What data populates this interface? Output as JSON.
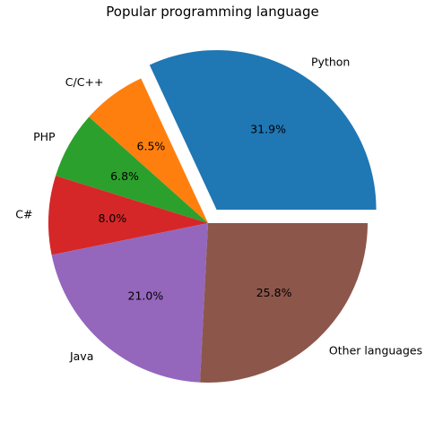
{
  "chart_data": {
    "type": "pie",
    "title": "Popular programming language",
    "slices": [
      {
        "label": "Python",
        "value": 31.9,
        "pct_label": "31.9%",
        "color": "#1f77b4",
        "exploded": true
      },
      {
        "label": "C/C++",
        "value": 6.5,
        "pct_label": "6.5%",
        "color": "#ff7f0e",
        "exploded": false
      },
      {
        "label": "PHP",
        "value": 6.8,
        "pct_label": "6.8%",
        "color": "#2ca02c",
        "exploded": false
      },
      {
        "label": "C#",
        "value": 8.0,
        "pct_label": "8.0%",
        "color": "#d62728",
        "exploded": false
      },
      {
        "label": "Java",
        "value": 21.0,
        "pct_label": "21.0%",
        "color": "#9467bd",
        "exploded": false
      },
      {
        "label": "Other languages",
        "value": 25.8,
        "pct_label": "25.8%",
        "color": "#8c564b",
        "exploded": false
      }
    ],
    "start_angle_deg": 0,
    "direction": "counterclockwise",
    "legend": "none"
  }
}
